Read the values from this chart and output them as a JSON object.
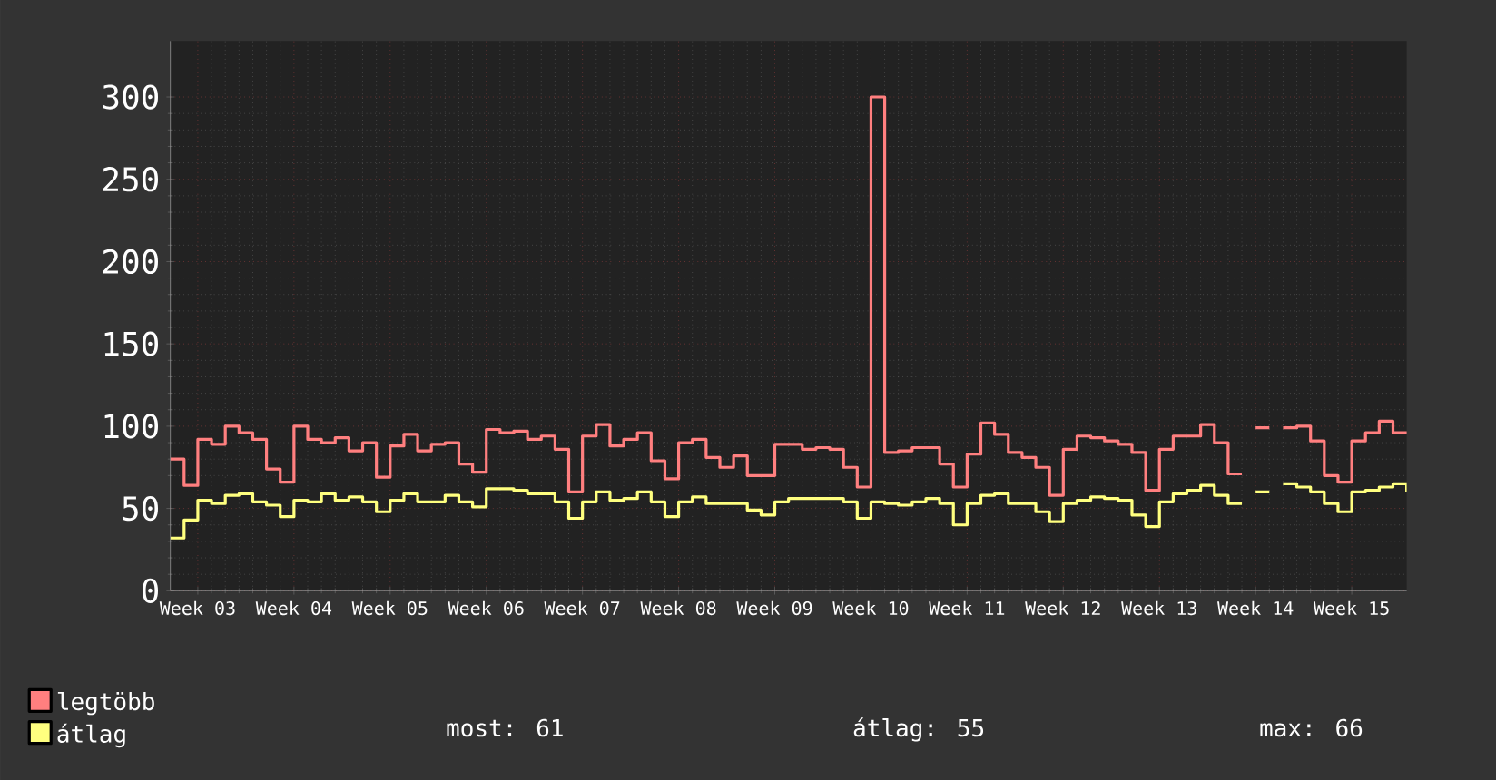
{
  "chart_data": {
    "type": "step",
    "categories": [
      null,
      null,
      "Week 03",
      null,
      null,
      null,
      null,
      null,
      null,
      "Week 04",
      null,
      null,
      null,
      null,
      null,
      null,
      "Week 05",
      null,
      null,
      null,
      null,
      null,
      null,
      "Week 06",
      null,
      null,
      null,
      null,
      null,
      null,
      "Week 07",
      null,
      null,
      null,
      null,
      null,
      null,
      "Week 08",
      null,
      null,
      null,
      null,
      null,
      null,
      "Week 09",
      null,
      null,
      null,
      null,
      null,
      null,
      "Week 10",
      null,
      null,
      null,
      null,
      null,
      null,
      "Week 11",
      null,
      null,
      null,
      null,
      null,
      null,
      "Week 12",
      null,
      null,
      null,
      null,
      null,
      null,
      "Week 13",
      null,
      null,
      null,
      null,
      null,
      null,
      "Week 14",
      null,
      null,
      null,
      null,
      null,
      null,
      "Week 15",
      null,
      null,
      null,
      null
    ],
    "series": [
      {
        "name": "legtöbb",
        "color": "#ff7f7f",
        "values": [
          80,
          64,
          92,
          89,
          100,
          96,
          92,
          74,
          66,
          100,
          92,
          90,
          93,
          85,
          90,
          69,
          88,
          95,
          85,
          89,
          90,
          77,
          72,
          98,
          96,
          97,
          92,
          94,
          86,
          60,
          94,
          101,
          88,
          92,
          96,
          79,
          68,
          90,
          92,
          81,
          75,
          82,
          70,
          70,
          89,
          89,
          86,
          87,
          86,
          75,
          63,
          300,
          84,
          85,
          87,
          87,
          77,
          63,
          83,
          102,
          95,
          84,
          81,
          75,
          58,
          86,
          94,
          93,
          91,
          89,
          84,
          61,
          86,
          94,
          94,
          101,
          90,
          71,
          null,
          99,
          null,
          99,
          100,
          91,
          70,
          66,
          91,
          96,
          103,
          96,
          95
        ]
      },
      {
        "name": "átlag",
        "color": "#ffff7f",
        "values": [
          32,
          43,
          55,
          53,
          58,
          59,
          54,
          52,
          45,
          55,
          54,
          59,
          55,
          57,
          54,
          48,
          55,
          59,
          54,
          54,
          58,
          54,
          51,
          62,
          62,
          61,
          59,
          59,
          54,
          44,
          54,
          60,
          55,
          56,
          60,
          54,
          45,
          54,
          57,
          53,
          53,
          53,
          49,
          46,
          54,
          56,
          56,
          56,
          56,
          54,
          44,
          54,
          53,
          52,
          54,
          56,
          53,
          40,
          53,
          58,
          59,
          53,
          53,
          48,
          42,
          53,
          55,
          57,
          56,
          55,
          46,
          39,
          54,
          59,
          61,
          64,
          58,
          53,
          null,
          60,
          null,
          65,
          63,
          60,
          53,
          48,
          60,
          61,
          63,
          65,
          60
        ]
      }
    ],
    "ylim": [
      0,
      334
    ],
    "yticks": [
      0,
      50,
      100,
      150,
      200,
      250,
      300
    ],
    "grid": true,
    "legend": "bottom",
    "annotations": [
      "most: 61",
      "átlag: 55",
      "max: 66"
    ]
  }
}
